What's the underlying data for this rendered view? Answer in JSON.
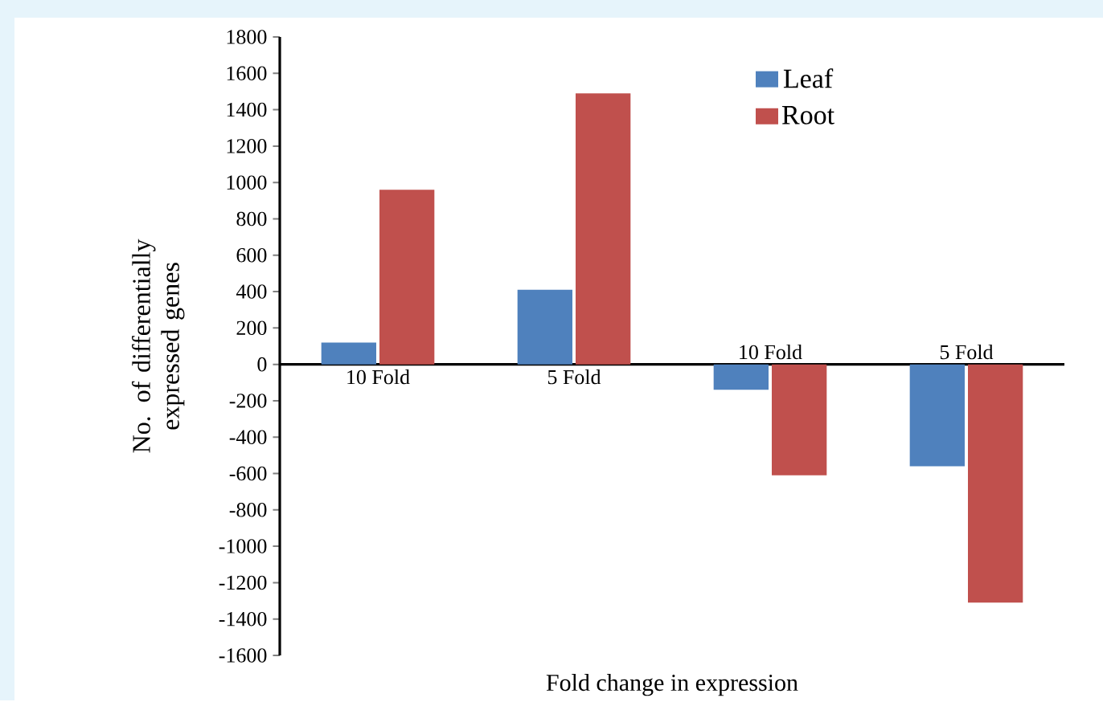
{
  "chart_data": {
    "type": "bar",
    "xlabel": "Fold change in expression",
    "ylabel": "No. of differentially expressed genes",
    "categories": [
      "10 Fold",
      "5 Fold",
      "10 Fold",
      "5 Fold"
    ],
    "series": [
      {
        "name": "Leaf",
        "color": "#4f81bd",
        "values": [
          120,
          410,
          -140,
          -560
        ]
      },
      {
        "name": "Root",
        "color": "#c0504d",
        "values": [
          960,
          1490,
          -610,
          -1310
        ]
      }
    ],
    "ylim": [
      -1600,
      1800
    ],
    "yticks": [
      -1600,
      -1400,
      -1200,
      -1000,
      -800,
      -600,
      -400,
      -200,
      0,
      200,
      400,
      600,
      800,
      1000,
      1200,
      1400,
      1600,
      1800
    ],
    "grid": false,
    "legend": "top right"
  }
}
